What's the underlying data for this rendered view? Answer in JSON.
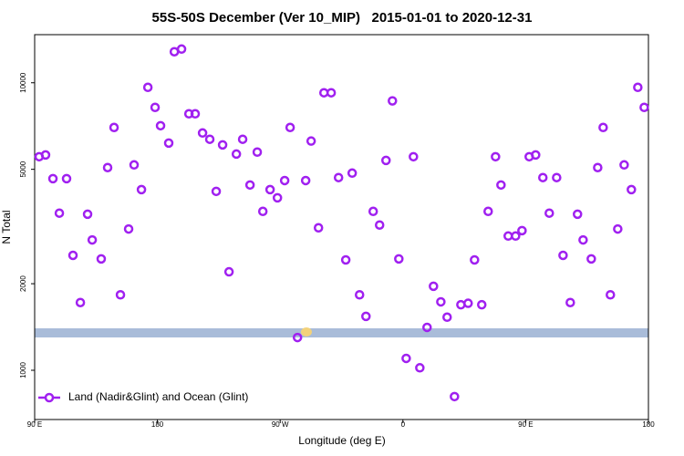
{
  "chart_data": {
    "type": "scatter",
    "title": "55S-50S December (Ver 10_MIP)   2015-01-01 to 2020-12-31",
    "x_label": "Longitude (deg E)",
    "y_label": "N Total",
    "xlim": [
      90,
      540
    ],
    "xticks": [
      {
        "value": 90,
        "label": "90 E"
      },
      {
        "value": 180,
        "label": "180"
      },
      {
        "value": 270,
        "label": "90 W"
      },
      {
        "value": 360,
        "label": "0"
      },
      {
        "value": 450,
        "label": "90 E"
      },
      {
        "value": 540,
        "label": "180"
      }
    ],
    "ylim": [
      674,
      14700
    ],
    "yticks": [
      1000,
      2000,
      5000,
      10000
    ],
    "log_y": true,
    "legend_position": "bottom-left",
    "series": [
      {
        "name": "Land (Nadir&Glint) and Ocean (Glint)",
        "color": "#a020f0",
        "x": [
          93.3,
          98.0,
          103.4,
          108.1,
          113.4,
          118.1,
          123.5,
          128.8,
          132.2,
          138.8,
          143.5,
          148.2,
          152.9,
          158.9,
          162.9,
          168.3,
          173.0,
          178.3,
          182.3,
          188.3,
          192.4,
          197.7,
          203.1,
          207.7,
          213.1,
          218.4,
          223.1,
          227.8,
          232.5,
          237.9,
          242.5,
          247.9,
          253.2,
          257.3,
          262.6,
          268.0,
          273.3,
          277.3,
          282.7,
          288.7,
          292.7,
          298.1,
          302.1,
          307.4,
          312.8,
          318.1,
          322.8,
          328.2,
          332.9,
          338.2,
          342.9,
          347.6,
          352.3,
          357.0,
          362.4,
          367.7,
          372.4,
          377.7,
          382.4,
          387.8,
          392.4,
          397.8,
          402.5,
          407.8,
          412.5,
          417.8,
          422.5,
          427.9,
          431.9,
          437.2,
          442.6,
          447.3,
          452.6,
          457.3,
          462.6,
          467.3,
          472.7,
          477.4,
          482.7,
          488.0,
          492.1,
          498.1,
          502.8,
          506.8,
          512.1,
          517.5,
          522.2,
          527.5,
          532.2,
          536.9
        ],
        "values": [
          5530,
          5610,
          4640,
          3520,
          4640,
          2510,
          1720,
          3490,
          2840,
          2440,
          5070,
          6990,
          1830,
          3100,
          5180,
          4250,
          9640,
          8210,
          7090,
          6170,
          12820,
          13100,
          7800,
          7800,
          6690,
          6360,
          4190,
          6080,
          2200,
          5650,
          6360,
          4410,
          5740,
          3570,
          4250,
          3980,
          4570,
          6990,
          1300,
          4570,
          6270,
          3130,
          9230,
          9230,
          4680,
          2420,
          4850,
          1830,
          1540,
          3570,
          3200,
          5370,
          8650,
          2440,
          1100,
          5530,
          1020,
          1410,
          1960,
          1730,
          1530,
          810,
          1690,
          1710,
          2420,
          1690,
          3570,
          5530,
          4410,
          2930,
          2930,
          3060,
          5530,
          5610,
          4680,
          3520,
          4680,
          2510,
          1720,
          3490,
          2840,
          2440,
          5070,
          6990,
          1830,
          3100,
          5180,
          4250,
          9640,
          8210
        ]
      }
    ]
  }
}
